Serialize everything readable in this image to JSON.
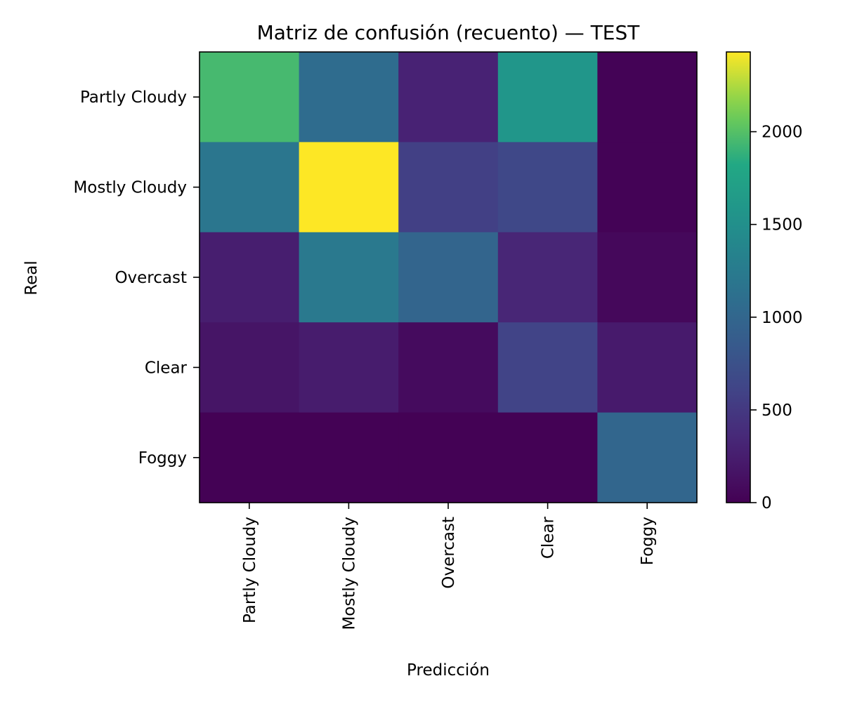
{
  "chart_data": {
    "type": "heatmap",
    "title": "Matriz de confusión (recuento) — TEST",
    "xlabel": "Predicción",
    "ylabel": "Real",
    "x_categories": [
      "Partly Cloudy",
      "Mostly Cloudy",
      "Overcast",
      "Clear",
      "Foggy"
    ],
    "y_categories": [
      "Partly Cloudy",
      "Mostly Cloudy",
      "Overcast",
      "Clear",
      "Foggy"
    ],
    "values": [
      [
        1950,
        1070,
        290,
        1580,
        20
      ],
      [
        1190,
        2430,
        570,
        650,
        20
      ],
      [
        250,
        1230,
        980,
        320,
        60
      ],
      [
        170,
        230,
        90,
        610,
        220
      ],
      [
        10,
        5,
        5,
        5,
        1000
      ]
    ],
    "colormap": "viridis",
    "colorbar": {
      "range": [
        0,
        2430
      ],
      "ticks": [
        0,
        500,
        1000,
        1500,
        2000
      ],
      "tick_labels": [
        "0",
        "500",
        "1000",
        "1500",
        "2000"
      ]
    },
    "x_tick_rotation": 90,
    "grid": false,
    "legend": "colorbar-right"
  }
}
